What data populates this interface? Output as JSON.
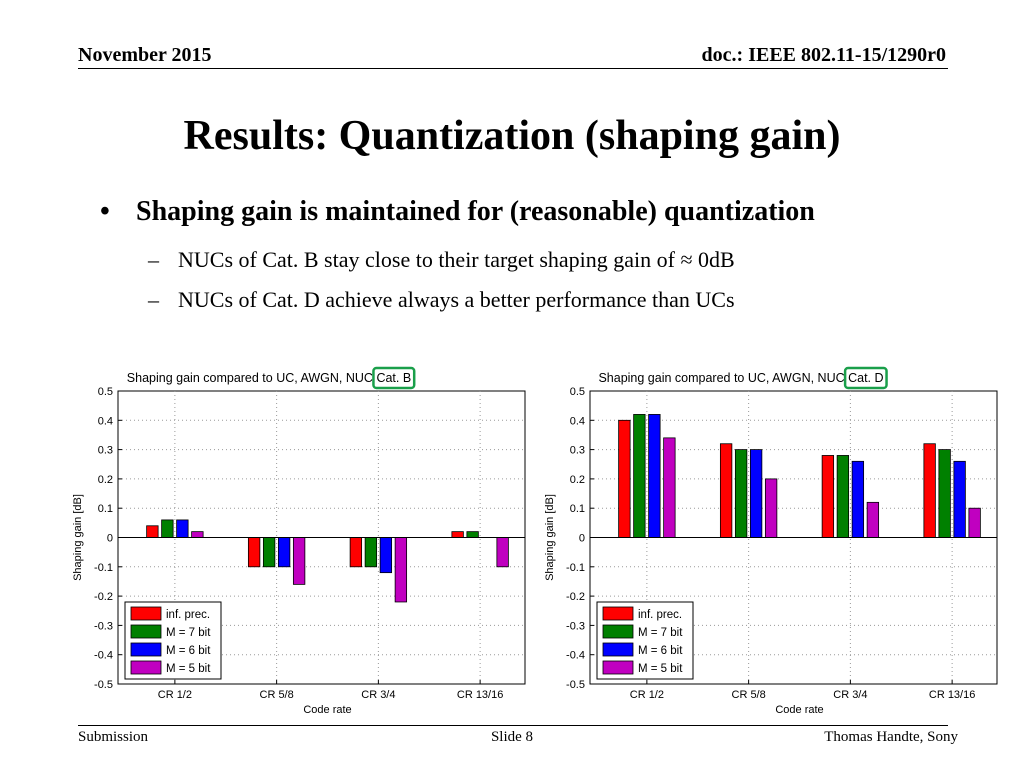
{
  "header": {
    "date": "November 2015",
    "doc": "doc.: IEEE 802.11-15/1290r0"
  },
  "slide": {
    "title": "Results: Quantization (shaping gain)",
    "bullet_symbol": "•",
    "bullet": "Shaping gain is maintained for (reasonable) quantization",
    "sub_symbol": "–",
    "sub_bullets": [
      "NUCs of Cat. B stay close to their target shaping gain of ≈ 0dB",
      "NUCs of Cat. D achieve always a better performance than UCs"
    ]
  },
  "footer": {
    "left": "Submission",
    "center": "Slide 8",
    "right": "Thomas Handte, Sony"
  },
  "colors": {
    "highlight_box": "#1a9f4a",
    "series": [
      "#ff0000",
      "#008000",
      "#0000ff",
      "#c000c0"
    ],
    "grid": "#9a9a9a"
  },
  "chart_data": [
    {
      "type": "bar",
      "title": "Shaping gain compared to UC, AWGN, NUC Cat. B",
      "title_prefix": "Shaping gain compared to UC, AWGN, NUC ",
      "title_highlight": "Cat. B",
      "xlabel": "Code rate",
      "ylabel": "Shaping gain [dB]",
      "ylim": [
        -0.5,
        0.5
      ],
      "yticks": [
        "0.5",
        "0.4",
        "0.3",
        "0.2",
        "0.1",
        "0",
        "-0.1",
        "-0.2",
        "-0.3",
        "-0.4",
        "-0.5"
      ],
      "grid": true,
      "legend_position": "bottom-left",
      "categories": [
        "CR 1/2",
        "CR 5/8",
        "CR 3/4",
        "CR 13/16"
      ],
      "series": [
        {
          "name": "inf. prec.",
          "values": [
            0.04,
            -0.1,
            -0.1,
            0.02
          ]
        },
        {
          "name": "M = 7 bit",
          "values": [
            0.06,
            -0.1,
            -0.1,
            0.02
          ]
        },
        {
          "name": "M = 6 bit",
          "values": [
            0.06,
            -0.1,
            -0.12,
            0.0
          ]
        },
        {
          "name": "M = 5 bit",
          "values": [
            0.02,
            -0.16,
            -0.22,
            -0.1
          ]
        }
      ]
    },
    {
      "type": "bar",
      "title": "Shaping gain compared to UC, AWGN, NUC Cat. D",
      "title_prefix": "Shaping gain compared to UC, AWGN, NUC ",
      "title_highlight": "Cat. D",
      "xlabel": "Code rate",
      "ylabel": "Shaping gain [dB]",
      "ylim": [
        -0.5,
        0.5
      ],
      "yticks": [
        "0.5",
        "0.4",
        "0.3",
        "0.2",
        "0.1",
        "0",
        "-0.1",
        "-0.2",
        "-0.3",
        "-0.4",
        "-0.5"
      ],
      "grid": true,
      "legend_position": "bottom-left",
      "categories": [
        "CR 1/2",
        "CR 5/8",
        "CR 3/4",
        "CR 13/16"
      ],
      "series": [
        {
          "name": "inf. prec.",
          "values": [
            0.4,
            0.32,
            0.28,
            0.32
          ]
        },
        {
          "name": "M = 7 bit",
          "values": [
            0.42,
            0.3,
            0.28,
            0.3
          ]
        },
        {
          "name": "M = 6 bit",
          "values": [
            0.42,
            0.3,
            0.26,
            0.26
          ]
        },
        {
          "name": "M = 5 bit",
          "values": [
            0.34,
            0.2,
            0.12,
            0.1
          ]
        }
      ]
    }
  ]
}
